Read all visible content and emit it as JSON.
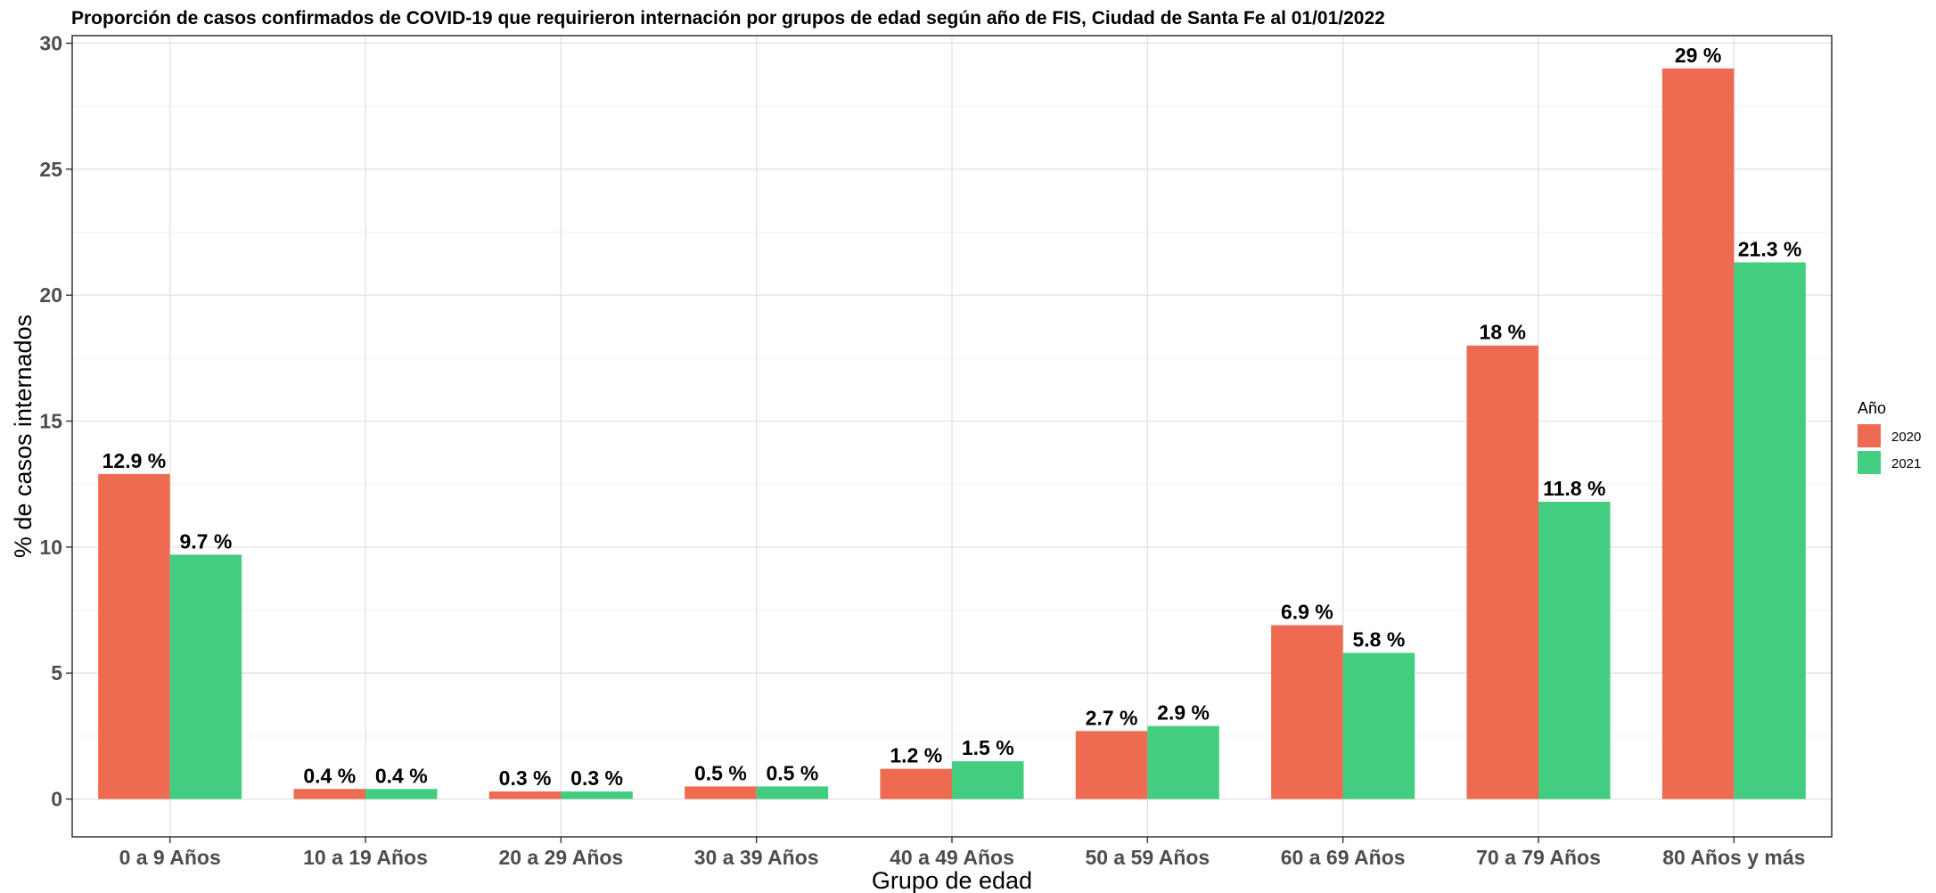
{
  "chart_data": {
    "type": "bar",
    "title": "Proporción de casos confirmados de COVID-19 que requirieron internación por grupos de edad según año de FIS, Ciudad de Santa Fe al 01/01/2022",
    "xlabel": "Grupo de edad",
    "ylabel": "% de casos internados",
    "categories": [
      "0 a 9 Años",
      "10 a 19 Años",
      "20 a 29 Años",
      "30 a 39 Años",
      "40 a 49 Años",
      "50 a 59 Años",
      "60 a 69 Años",
      "70 a 79 Años",
      "80 Años y más"
    ],
    "series": [
      {
        "name": "2020",
        "color": "#EE6A50",
        "values": [
          12.9,
          0.4,
          0.3,
          0.5,
          1.2,
          2.7,
          6.9,
          18,
          29
        ],
        "labels": [
          "12.9 %",
          "0.4 %",
          "0.3 %",
          "0.5 %",
          "1.2 %",
          "2.7 %",
          "6.9 %",
          "18 %",
          "29 %"
        ]
      },
      {
        "name": "2021",
        "color": "#43CD80",
        "values": [
          9.7,
          0.4,
          0.3,
          0.5,
          1.5,
          2.9,
          5.8,
          11.8,
          21.3
        ],
        "labels": [
          "9.7 %",
          "0.4 %",
          "0.3 %",
          "0.5 %",
          "1.5 %",
          "2.9 %",
          "5.8 %",
          "11.8 %",
          "21.3 %"
        ]
      }
    ],
    "ylim": [
      -1.5,
      30.3
    ],
    "yticks": [
      0,
      5,
      10,
      15,
      20,
      25,
      30
    ],
    "ytick_labels": [
      "0",
      "5",
      "10",
      "15",
      "20",
      "25",
      "30"
    ],
    "grid": true,
    "legend": {
      "title": "Año",
      "placement": "right"
    }
  }
}
